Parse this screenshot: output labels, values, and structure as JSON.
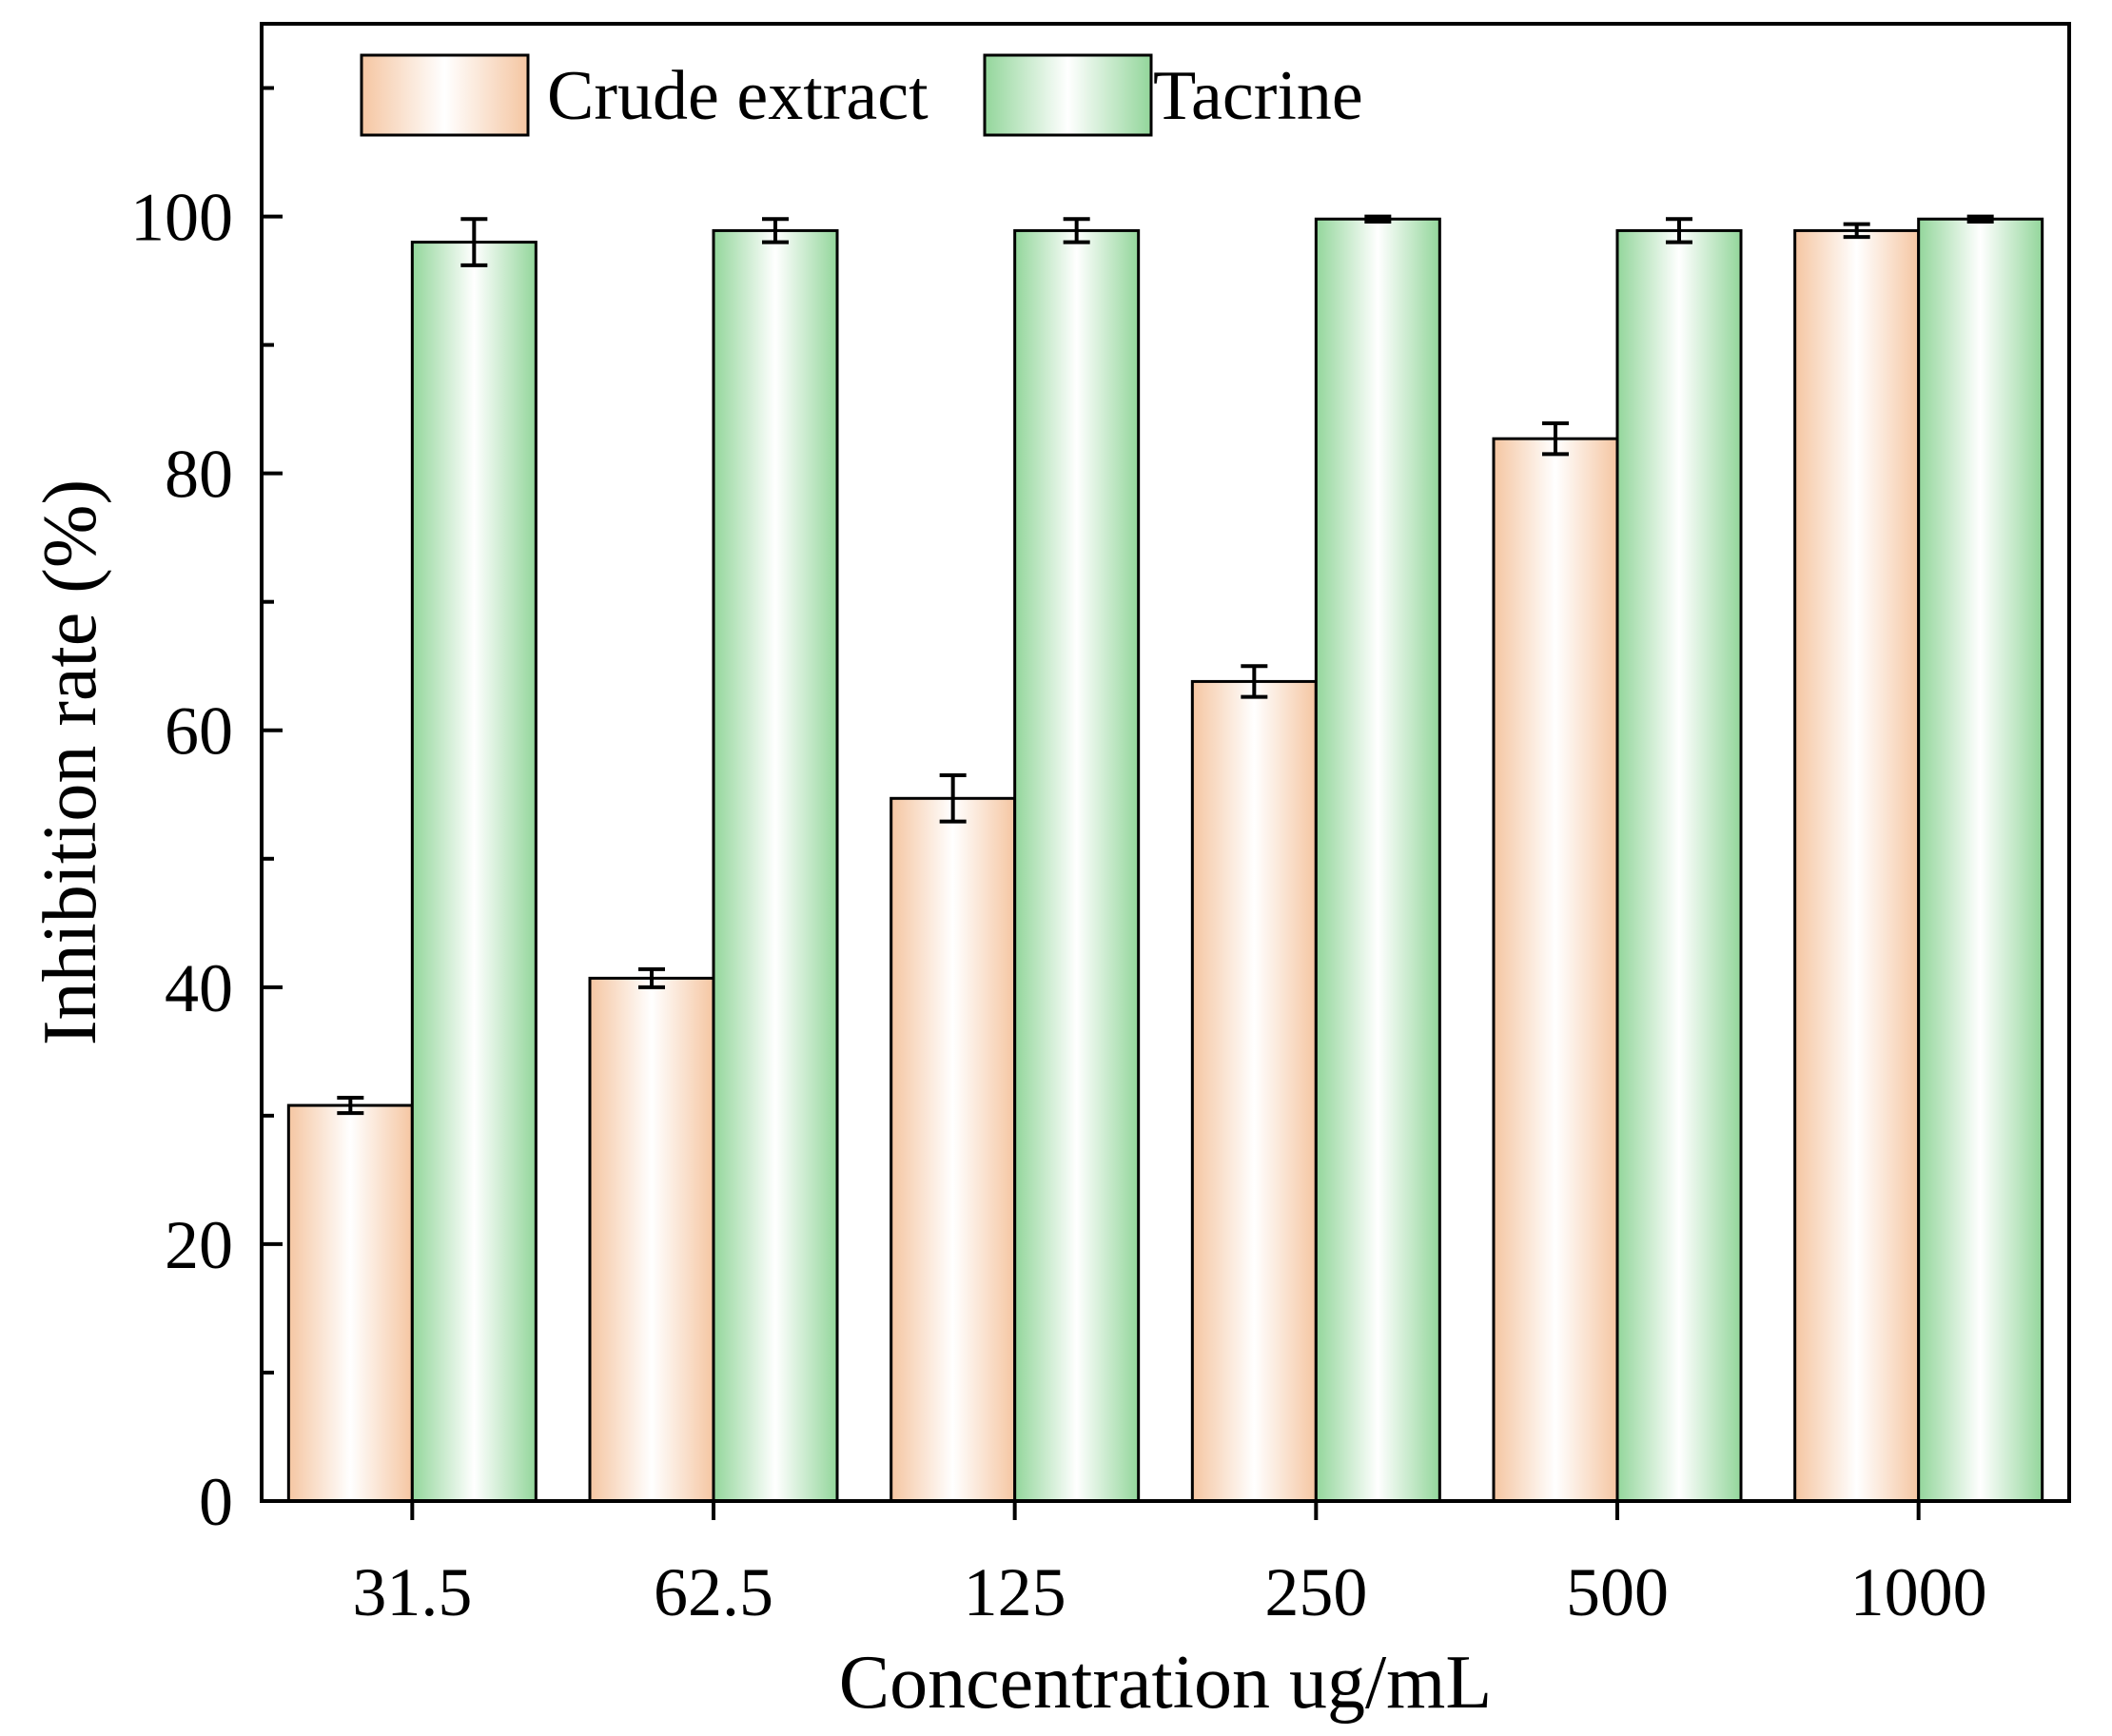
{
  "chart_data": {
    "type": "bar",
    "title": "",
    "xlabel": "Concentration ug/mL",
    "ylabel": "Inhibition rate (%)",
    "categories": [
      "31.5",
      "62.5",
      "125",
      "250",
      "500",
      "1000"
    ],
    "ylim": [
      0,
      115
    ],
    "yticks": [
      0,
      20,
      40,
      60,
      80,
      100
    ],
    "minor_yticks": [
      10,
      30,
      50,
      70,
      90,
      110
    ],
    "grid": false,
    "legend_position": "top-left",
    "series": [
      {
        "name": "Crude extract",
        "values": [
          30.8,
          40.7,
          54.7,
          63.8,
          82.7,
          98.9
        ],
        "errors": [
          0.6,
          0.7,
          1.8,
          1.2,
          1.2,
          0.5
        ],
        "color": "#f5c9a6",
        "color_light": "#ffffff"
      },
      {
        "name": "Tacrine",
        "values": [
          98.0,
          98.9,
          98.9,
          99.8,
          98.9,
          99.8
        ],
        "errors": [
          1.8,
          0.9,
          0.9,
          0.2,
          0.9,
          0.2
        ],
        "color": "#9fd9a5",
        "color_light": "#ffffff"
      }
    ]
  }
}
